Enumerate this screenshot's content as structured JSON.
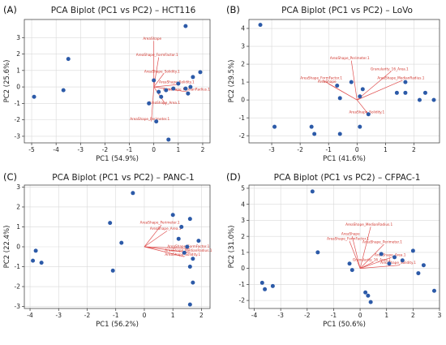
{
  "chart_data": [
    {
      "type": "scatter",
      "panel": "(A)",
      "title": "PCA Biplot (PC1 vs PC2) – HCT116",
      "xlabel": "PC1 (54.9%)",
      "ylabel": "PC2 (25.6%)",
      "xlim": [
        -5.3,
        2.3
      ],
      "ylim": [
        -3.4,
        4.1
      ],
      "xticks": [
        -5,
        -4,
        -3,
        -2,
        -1,
        0,
        1,
        2
      ],
      "yticks": [
        -3,
        -2,
        -1,
        0,
        1,
        2,
        3
      ],
      "grid": true,
      "points": [
        {
          "x": -4.9,
          "y": -0.6
        },
        {
          "x": -3.7,
          "y": -0.2
        },
        {
          "x": -3.5,
          "y": 1.7
        },
        {
          "x": 1.3,
          "y": 3.7
        },
        {
          "x": 0.0,
          "y": 0.4
        },
        {
          "x": 0.2,
          "y": -0.3
        },
        {
          "x": 0.5,
          "y": -0.2
        },
        {
          "x": 0.8,
          "y": -0.1
        },
        {
          "x": 1.0,
          "y": 0.2
        },
        {
          "x": 1.3,
          "y": -0.1
        },
        {
          "x": 1.5,
          "y": 0.0
        },
        {
          "x": 1.6,
          "y": 0.6
        },
        {
          "x": 1.9,
          "y": 0.9
        },
        {
          "x": -0.2,
          "y": -1.0
        },
        {
          "x": 0.1,
          "y": -2.1
        },
        {
          "x": 0.6,
          "y": -3.2
        },
        {
          "x": 1.4,
          "y": -0.4
        },
        {
          "x": 0.3,
          "y": -0.6
        }
      ],
      "loadings": [
        {
          "label": "AreaShape",
          "x": 0.0,
          "y": 2.8
        },
        {
          "label": "AreaShape_FormFactor.1",
          "x": 0.2,
          "y": 1.8
        },
        {
          "label": "AreaShape_Solidity.1",
          "x": 0.4,
          "y": 0.8
        },
        {
          "label": "AreaShape_Solidity.1",
          "x": 1.0,
          "y": 0.15
        },
        {
          "label": "AreaShape_MedianRadius.1",
          "x": 1.4,
          "y": -0.3
        },
        {
          "label": "AreaShape_Area.1",
          "x": 0.5,
          "y": -1.1
        },
        {
          "label": "AreaShape_Perimeter.1",
          "x": -0.1,
          "y": -2.1
        }
      ]
    },
    {
      "type": "scatter",
      "panel": "(B)",
      "title": "PCA Biplot (PC1 vs PC2) – LoVo",
      "xlabel": "PC1 (41.6%)",
      "ylabel": "PC2 (29.5%)",
      "xlim": [
        -3.8,
        2.9
      ],
      "ylim": [
        -2.4,
        4.5
      ],
      "xticks": [
        -3,
        -2,
        -1,
        0,
        1,
        2
      ],
      "yticks": [
        -2,
        -1,
        0,
        1,
        2,
        3,
        4
      ],
      "grid": true,
      "points": [
        {
          "x": -3.4,
          "y": 4.2
        },
        {
          "x": -2.9,
          "y": -1.5
        },
        {
          "x": -1.6,
          "y": -1.5
        },
        {
          "x": -1.5,
          "y": -1.9
        },
        {
          "x": -0.6,
          "y": -1.9
        },
        {
          "x": 0.1,
          "y": -1.5
        },
        {
          "x": -0.7,
          "y": 0.8
        },
        {
          "x": -0.2,
          "y": 1.0
        },
        {
          "x": -0.6,
          "y": 0.1
        },
        {
          "x": 0.2,
          "y": 0.6
        },
        {
          "x": 0.4,
          "y": -0.8
        },
        {
          "x": 1.4,
          "y": 0.4
        },
        {
          "x": 1.7,
          "y": 1.0
        },
        {
          "x": 1.7,
          "y": 0.4
        },
        {
          "x": 2.2,
          "y": 0.0
        },
        {
          "x": 2.4,
          "y": 0.4
        },
        {
          "x": 2.7,
          "y": 0.0
        },
        {
          "x": 0.1,
          "y": 0.2
        }
      ],
      "loadings": [
        {
          "label": "AreaShape_Perimeter.1",
          "x": -0.2,
          "y": 2.2
        },
        {
          "label": "Granularity_16_Area.1",
          "x": 1.2,
          "y": 1.6
        },
        {
          "label": "AreaShape_FormFactor.1",
          "x": -1.2,
          "y": 1.1
        },
        {
          "label": "AreaShape",
          "x": -1.0,
          "y": 0.9
        },
        {
          "label": "AreaShape_MedianRadius.1",
          "x": 1.6,
          "y": 1.1
        },
        {
          "label": "AreaShape_Solidity.1",
          "x": 0.4,
          "y": -0.8
        }
      ]
    },
    {
      "type": "scatter",
      "panel": "(C)",
      "title": "PCA Biplot (PC1 vs PC2) – PANC-1",
      "xlabel": "PC1 (56.2%)",
      "ylabel": "PC2 (22.4%)",
      "xlim": [
        -4.2,
        2.3
      ],
      "ylim": [
        -3.1,
        3.1
      ],
      "xticks": [
        -4,
        -3,
        -2,
        -1,
        0,
        1,
        2
      ],
      "yticks": [
        -3,
        -2,
        -1,
        0,
        1,
        2,
        3
      ],
      "grid": true,
      "points": [
        {
          "x": -3.8,
          "y": -0.2
        },
        {
          "x": -3.9,
          "y": -0.7
        },
        {
          "x": -3.6,
          "y": -0.8
        },
        {
          "x": -0.4,
          "y": 2.7
        },
        {
          "x": -1.2,
          "y": 1.2
        },
        {
          "x": -0.8,
          "y": 0.2
        },
        {
          "x": -1.1,
          "y": -1.2
        },
        {
          "x": 1.0,
          "y": 1.6
        },
        {
          "x": 1.3,
          "y": 1.0
        },
        {
          "x": 1.6,
          "y": 1.4
        },
        {
          "x": 1.9,
          "y": 0.3
        },
        {
          "x": 1.5,
          "y": 0.0
        },
        {
          "x": 1.7,
          "y": -0.6
        },
        {
          "x": 1.6,
          "y": -1.0
        },
        {
          "x": 1.7,
          "y": -1.8
        },
        {
          "x": 1.6,
          "y": -2.9
        },
        {
          "x": 1.2,
          "y": 0.4
        },
        {
          "x": 1.4,
          "y": -0.3
        }
      ],
      "loadings": [
        {
          "label": "AreaShape_Perimeter.1",
          "x": 0.6,
          "y": 1.1
        },
        {
          "label": "AreaShape_Area.1",
          "x": 0.8,
          "y": 0.8
        },
        {
          "label": "AreaShape_FormFactor.1",
          "x": 1.6,
          "y": -0.1
        },
        {
          "label": "AreaShape_MedianRadius.1",
          "x": 1.6,
          "y": -0.3
        },
        {
          "label": "AreaShape_Solidity.1",
          "x": 1.4,
          "y": -0.5
        }
      ]
    },
    {
      "type": "scatter",
      "panel": "(D)",
      "title": "PCA Biplot (PC1 vs PC2) – CFPAC-1",
      "xlabel": "PC1 (50.6%)",
      "ylabel": "PC2 (31.0%)",
      "xlim": [
        -4.2,
        3.0
      ],
      "ylim": [
        -2.5,
        5.2
      ],
      "xticks": [
        -4,
        -3,
        -2,
        -1,
        0,
        1,
        2,
        3
      ],
      "yticks": [
        -2,
        -1,
        0,
        1,
        2,
        3,
        4,
        5
      ],
      "grid": true,
      "points": [
        {
          "x": -3.7,
          "y": -0.9
        },
        {
          "x": -3.6,
          "y": -1.3
        },
        {
          "x": -3.3,
          "y": -1.1
        },
        {
          "x": -1.8,
          "y": 4.8
        },
        {
          "x": -1.6,
          "y": 1.0
        },
        {
          "x": -0.4,
          "y": 0.3
        },
        {
          "x": -0.3,
          "y": -0.1
        },
        {
          "x": 0.2,
          "y": -1.5
        },
        {
          "x": 0.3,
          "y": -1.7
        },
        {
          "x": 0.4,
          "y": -2.1
        },
        {
          "x": 0.8,
          "y": 0.9
        },
        {
          "x": 1.3,
          "y": 0.7
        },
        {
          "x": 1.6,
          "y": 0.5
        },
        {
          "x": 2.0,
          "y": 1.1
        },
        {
          "x": 2.2,
          "y": -0.3
        },
        {
          "x": 2.4,
          "y": 0.2
        },
        {
          "x": 2.8,
          "y": -1.4
        },
        {
          "x": 1.1,
          "y": 0.3
        }
      ],
      "loadings": [
        {
          "label": "AreaShape_MedianRadius.1",
          "x": 0.4,
          "y": 2.6
        },
        {
          "label": "AreaShape",
          "x": -0.3,
          "y": 2.0
        },
        {
          "label": "AreaShape_FormFactor.1",
          "x": -0.4,
          "y": 1.7
        },
        {
          "label": "AreaShape_Perimeter.1",
          "x": 0.9,
          "y": 1.5
        },
        {
          "label": "AreaShape_Area.1",
          "x": 1.2,
          "y": 0.7
        },
        {
          "label": "Granularity_16_Area.1",
          "x": 0.5,
          "y": 0.4
        },
        {
          "label": "AreaShape_Solidity.1",
          "x": 1.5,
          "y": 0.2
        }
      ]
    }
  ]
}
